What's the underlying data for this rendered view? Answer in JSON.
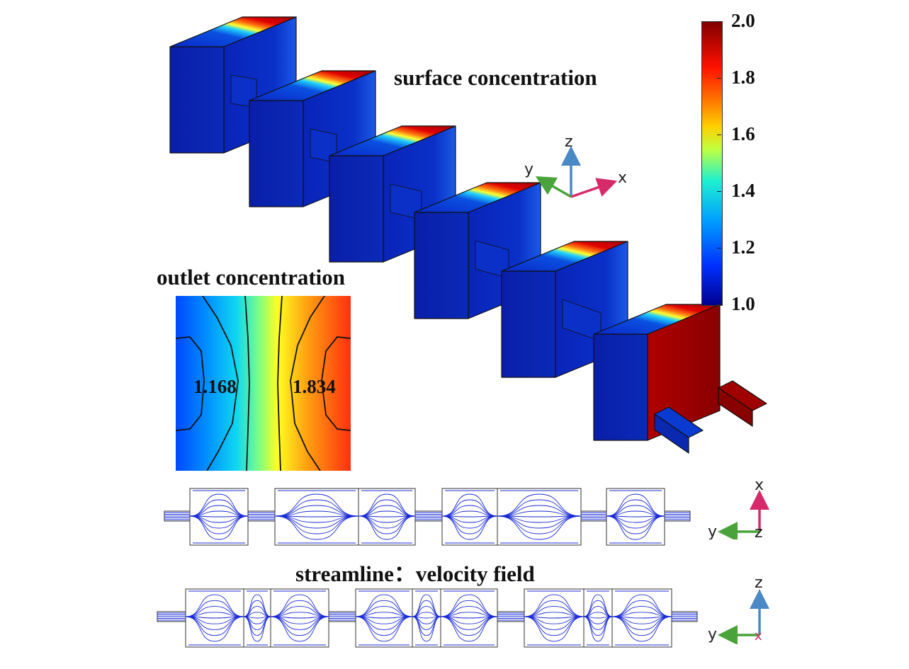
{
  "titles": {
    "surface": "surface concentration",
    "outlet": "outlet concentration",
    "streamline": "streamline：velocity field"
  },
  "colorbar": {
    "min": 1.0,
    "max": 2.0,
    "ticks": [
      "2.0",
      "1.8",
      "1.6",
      "1.4",
      "1.2",
      "1.0"
    ],
    "colors": [
      "#00008f",
      "#0040ff",
      "#00c0ff",
      "#40ffbf",
      "#ffff00",
      "#ff8000",
      "#ff0000",
      "#800000"
    ]
  },
  "outlet_contours": {
    "left_value": "1.168",
    "right_value": "1.834"
  },
  "axes_triad_3d": {
    "x": "x",
    "y": "y",
    "z": "z"
  },
  "axes_triad_top": {
    "x": "x",
    "y": "y",
    "z": "z"
  },
  "axes_triad_side": {
    "z": "z",
    "y": "y",
    "x": "x"
  },
  "mixer": {
    "chambers": 6
  },
  "colors": {
    "streamline": "#1a2bd6",
    "outline": "#333333",
    "axis_x": "#d62a6a",
    "axis_y": "#4aa33a",
    "axis_z": "#4a88c6"
  }
}
